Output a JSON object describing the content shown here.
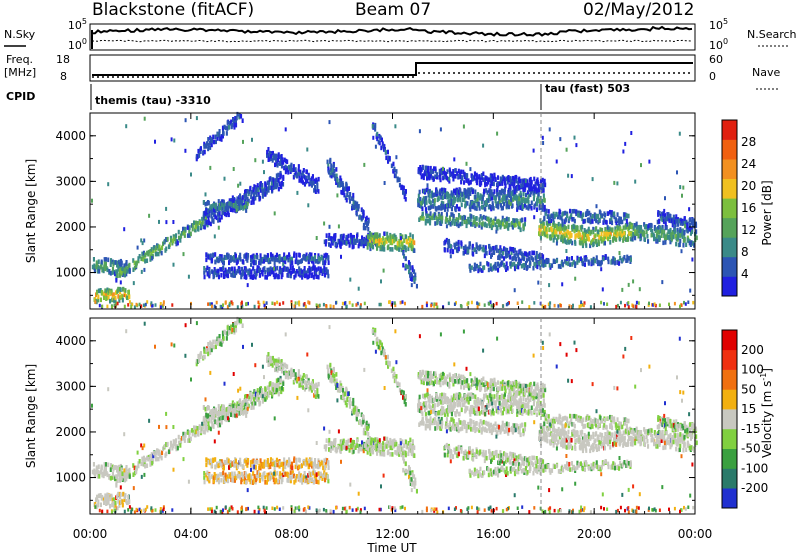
{
  "header": {
    "station": "Blackstone (fitACF)",
    "beam": "Beam 07",
    "date": "02/May/2012"
  },
  "summary": {
    "nsky_label": "N.Sky",
    "nsky_top": "10^5",
    "nsky_bottom": "10^0",
    "nsearch_label": "N.Search",
    "nsearch_top": "10^5",
    "nsearch_bottom": "10^0",
    "freq_label": "Freq.",
    "freq_unit": "[MHz]",
    "freq_ticks": [
      "18",
      "8"
    ],
    "nave_label": "Nave",
    "nave_ticks": [
      "60",
      "0"
    ],
    "cpid_label": "CPID",
    "cpid_before": "themis (tau) -3310",
    "cpid_after": "tau (fast) 503"
  },
  "colors": {
    "power": [
      "#2020e0",
      "#2c55b4",
      "#3a8a88",
      "#55a35a",
      "#7cbf3e",
      "#f0c020",
      "#f29020",
      "#f06010",
      "#e02010"
    ],
    "velocity": [
      "#2030d0",
      "#2a7a6a",
      "#3aa040",
      "#80d040",
      "#c8c8c0",
      "#f2b010",
      "#f07010",
      "#f03010",
      "#e00000"
    ]
  },
  "chart_data": [
    {
      "type": "heatmap",
      "panel": "power",
      "ylabel": "Slant Range [km]",
      "ylim": [
        200,
        4500
      ],
      "y_ticks": [
        "1000",
        "2000",
        "3000",
        "4000"
      ],
      "x_range_hours": [
        0,
        24
      ],
      "x_ticks": [
        "00:00",
        "04:00",
        "08:00",
        "12:00",
        "16:00",
        "20:00",
        "00:00"
      ],
      "colorbar_title": "Power [dB]",
      "colorbar_ticks": [
        "4",
        "8",
        "12",
        "16",
        "20",
        "24",
        "28"
      ],
      "features": [
        {
          "t0": 0.15,
          "t1": 1.5,
          "r0": 480,
          "r1": 520,
          "dr": 160,
          "p": 26
        },
        {
          "t0": 0.1,
          "t1": 1.4,
          "r0": 1150,
          "r1": 1100,
          "dr": 200,
          "p": 15
        },
        {
          "t0": 1.0,
          "t1": 4.6,
          "r0": 950,
          "r1": 2150,
          "dr": 150,
          "p": 18
        },
        {
          "t0": 4.5,
          "t1": 7.6,
          "r0": 2150,
          "r1": 3050,
          "dr": 220,
          "p": 8
        },
        {
          "t0": 4.5,
          "t1": 6.2,
          "r0": 2450,
          "r1": 2450,
          "dr": 140,
          "p": 12
        },
        {
          "t0": 4.2,
          "t1": 6.0,
          "r0": 3600,
          "r1": 4450,
          "dr": 150,
          "p": 8
        },
        {
          "t0": 4.5,
          "t1": 9.4,
          "r0": 1000,
          "r1": 1000,
          "dr": 140,
          "p": 7
        },
        {
          "t0": 4.6,
          "t1": 9.4,
          "r0": 1300,
          "r1": 1300,
          "dr": 120,
          "p": 9
        },
        {
          "t0": 7.0,
          "t1": 9.0,
          "r0": 3600,
          "r1": 2900,
          "dr": 200,
          "p": 7
        },
        {
          "t0": 9.4,
          "t1": 11.0,
          "r0": 3400,
          "r1": 2000,
          "dr": 220,
          "p": 9
        },
        {
          "t0": 9.3,
          "t1": 11.3,
          "r0": 1700,
          "r1": 1700,
          "dr": 180,
          "p": 7
        },
        {
          "t0": 11.0,
          "t1": 12.8,
          "r0": 1700,
          "r1": 1650,
          "dr": 220,
          "p": 22
        },
        {
          "t0": 11.2,
          "t1": 12.5,
          "r0": 4200,
          "r1": 2700,
          "dr": 140,
          "p": 8
        },
        {
          "t0": 12.4,
          "t1": 12.9,
          "r0": 1300,
          "r1": 800,
          "dr": 200,
          "p": 10
        },
        {
          "t0": 13.0,
          "t1": 18.0,
          "r0": 2600,
          "r1": 2600,
          "dr": 280,
          "p": 12
        },
        {
          "t0": 13.0,
          "t1": 17.2,
          "r0": 2200,
          "r1": 2050,
          "dr": 150,
          "p": 16
        },
        {
          "t0": 13.0,
          "t1": 18.0,
          "r0": 3200,
          "r1": 2900,
          "dr": 160,
          "p": 6
        },
        {
          "t0": 14.0,
          "t1": 18.0,
          "r0": 1600,
          "r1": 1300,
          "dr": 150,
          "p": 9
        },
        {
          "t0": 15.0,
          "t1": 21.5,
          "r0": 1100,
          "r1": 1300,
          "dr": 110,
          "p": 11
        },
        {
          "t0": 17.8,
          "t1": 19.5,
          "r0": 1950,
          "r1": 1800,
          "dr": 250,
          "p": 23
        },
        {
          "t0": 19.5,
          "t1": 21.5,
          "r0": 1750,
          "r1": 1900,
          "dr": 230,
          "p": 22
        },
        {
          "t0": 21.5,
          "t1": 24.0,
          "r0": 1900,
          "r1": 1750,
          "dr": 230,
          "p": 15
        },
        {
          "t0": 18.0,
          "t1": 21.3,
          "r0": 2250,
          "r1": 2200,
          "dr": 150,
          "p": 11
        },
        {
          "t0": 22.5,
          "t1": 24.0,
          "r0": 2200,
          "r1": 2050,
          "dr": 150,
          "p": 8
        }
      ]
    },
    {
      "type": "heatmap",
      "panel": "velocity",
      "ylabel": "Slant Range [km]",
      "ylim": [
        200,
        4500
      ],
      "y_ticks": [
        "1000",
        "2000",
        "3000",
        "4000"
      ],
      "x_range_hours": [
        0,
        24
      ],
      "x_ticks": [
        "00:00",
        "04:00",
        "08:00",
        "12:00",
        "16:00",
        "20:00",
        "00:00"
      ],
      "xlabel": "Time UT",
      "colorbar_title": "Velocity [m s^-1]",
      "colorbar_ticks": [
        "200",
        "100",
        "50",
        "15",
        "-15",
        "-50",
        "-100",
        "-200"
      ]
    }
  ]
}
